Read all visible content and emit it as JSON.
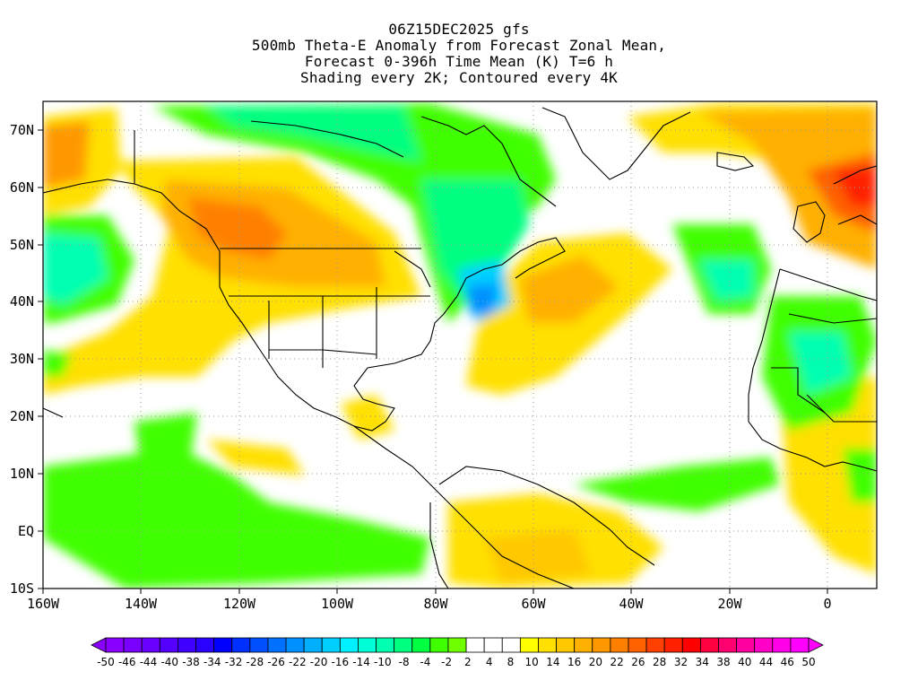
{
  "title": {
    "line1": "06Z15DEC2025 gfs",
    "line2": "500mb Theta-E Anomaly from Forecast Zonal Mean,",
    "line3": "Forecast 0-396h Time Mean (K) T=6 h",
    "line4": "Shading every 2K; Contoured every 4K"
  },
  "map": {
    "lon_range": [
      -160,
      10
    ],
    "lat_range": [
      -10,
      75
    ],
    "lon_ticks": [
      "160W",
      "140W",
      "120W",
      "100W",
      "80W",
      "60W",
      "40W",
      "20W",
      "0"
    ],
    "lat_ticks": [
      "10S",
      "EQ",
      "10N",
      "20N",
      "30N",
      "40N",
      "50N",
      "60N",
      "70N"
    ],
    "gridlines": "dotted"
  },
  "colorbar": {
    "labels": [
      "-50",
      "-46",
      "-44",
      "-40",
      "-38",
      "-34",
      "-32",
      "-28",
      "-26",
      "-22",
      "-20",
      "-16",
      "-14",
      "-10",
      "-8",
      "-4",
      "-2",
      "2",
      "4",
      "8",
      "10",
      "14",
      "16",
      "20",
      "22",
      "26",
      "28",
      "32",
      "34",
      "38",
      "40",
      "44",
      "46",
      "50"
    ],
    "colors": [
      "#8a00ff",
      "#7a00ff",
      "#6a00ff",
      "#5500ff",
      "#3f00ff",
      "#2a00ff",
      "#0000ff",
      "#0030ff",
      "#0050ff",
      "#0070ff",
      "#0090ff",
      "#00b0ff",
      "#00d0ff",
      "#00f0ff",
      "#00ffd8",
      "#00ffb0",
      "#00ff80",
      "#00ff40",
      "#40ff00",
      "#70ff00",
      "#ffffff",
      "#ffffff",
      "#ffffff",
      "#ffff00",
      "#ffe000",
      "#ffc800",
      "#ffb000",
      "#ff9800",
      "#ff8000",
      "#ff6000",
      "#ff4000",
      "#ff2000",
      "#ff0000",
      "#ff0040",
      "#ff0070",
      "#ff00a0",
      "#ff00c8",
      "#ff00e8",
      "#ff00ff"
    ],
    "end_left": "#8a00ff",
    "end_right": "#ff00ff"
  }
}
